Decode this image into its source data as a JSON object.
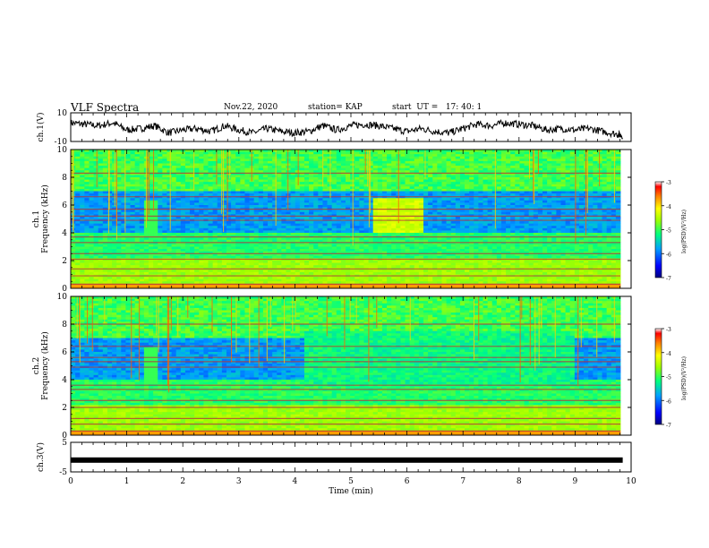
{
  "header": {
    "title": "VLF Spectra",
    "date": "Nov.22, 2020",
    "station": "station= KAP",
    "start": "start  UT =   17: 40: 1"
  },
  "chart_data": [
    {
      "type": "line",
      "panel": "ch1-waveform",
      "ylabel": "ch.1(V)",
      "ylim": [
        -10,
        10
      ],
      "yticks": [
        "10",
        "-10"
      ],
      "xlim": [
        0,
        10
      ],
      "series": [
        {
          "x": [
            0,
            0.25,
            0.5,
            0.75,
            1,
            1.25,
            1.5,
            1.75,
            2,
            2.25,
            2.5,
            2.75,
            3,
            3.25,
            3.5,
            3.75,
            4,
            4.25,
            4.5,
            4.75,
            5,
            5.25,
            5.5,
            5.75,
            6,
            6.25,
            6.5,
            6.75,
            7,
            7.25,
            7.5,
            7.75,
            8,
            8.25,
            8.5,
            8.75,
            9,
            9.25,
            9.5,
            9.75,
            9.85
          ],
          "values": [
            3,
            2,
            1,
            3,
            -2,
            -1,
            1,
            -4,
            -2,
            -1,
            -3,
            1,
            -2,
            -4,
            -1,
            -3,
            -4,
            -3,
            1,
            -2,
            1,
            2,
            1,
            -1,
            -3,
            -1,
            -3,
            -4,
            -1,
            2,
            1,
            3,
            2,
            1,
            -2,
            -1,
            -2,
            -1,
            -3,
            -5,
            -6
          ]
        }
      ]
    },
    {
      "type": "heatmap",
      "panel": "ch1-spectrogram",
      "ylabel": "ch.1\nFrequency  (kHz)",
      "ylim": [
        0,
        10
      ],
      "yticks": [
        "0",
        "2",
        "4",
        "6",
        "8",
        "10"
      ],
      "xlim": [
        0,
        10
      ],
      "colorbar": {
        "label": "log(PSD)(V²/Hz)",
        "ticks": [
          "-3",
          "-4",
          "-5",
          "-6",
          "-7"
        ],
        "range": [
          -7,
          -3
        ]
      }
    },
    {
      "type": "heatmap",
      "panel": "ch2-spectrogram",
      "ylabel": "ch.2\nFrequency  (kHz)",
      "ylim": [
        0,
        10
      ],
      "yticks": [
        "0",
        "2",
        "4",
        "6",
        "8",
        "10"
      ],
      "xlim": [
        0,
        10
      ],
      "colorbar": {
        "label": "log(PSD)(V²/Hz)",
        "ticks": [
          "-3",
          "-4",
          "-5",
          "-6",
          "-7"
        ],
        "range": [
          -7,
          -3
        ]
      }
    },
    {
      "type": "line",
      "panel": "ch3-waveform",
      "ylabel": "ch.3(V)",
      "ylim": [
        -5,
        5
      ],
      "yticks": [
        "5",
        "-5"
      ],
      "xlim": [
        0,
        10
      ],
      "xlabel": "Time  (min)",
      "xticks": [
        "0",
        "1",
        "2",
        "3",
        "4",
        "5",
        "6",
        "7",
        "8",
        "9",
        "10"
      ],
      "series": [
        {
          "x": [
            0,
            9.85
          ],
          "values": [
            -1,
            -1
          ]
        }
      ]
    }
  ],
  "colors": {
    "low": "#0000ff",
    "mid": "#00ff80",
    "high": "#ff0000"
  }
}
